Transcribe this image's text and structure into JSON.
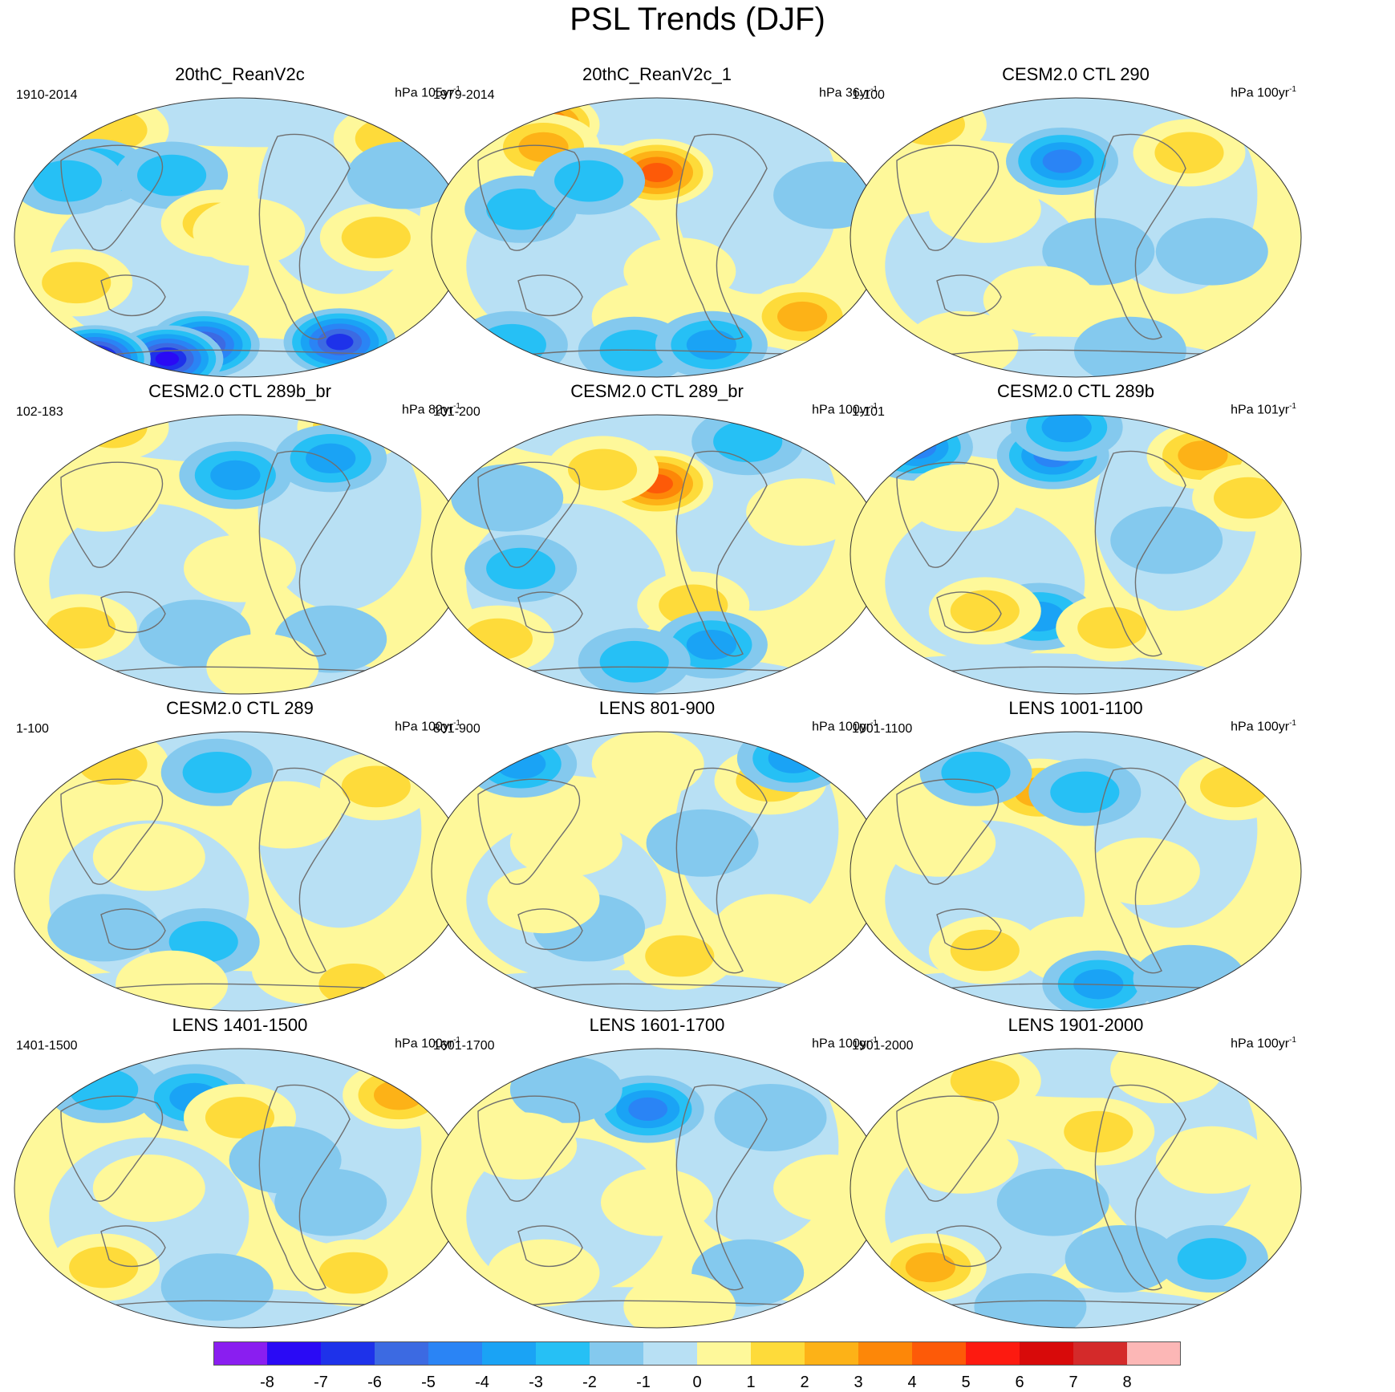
{
  "title": "PSL Trends (DJF)",
  "palette": [
    "#8a1ef0",
    "#2a0af5",
    "#1e32ea",
    "#3c6ae2",
    "#2a84f5",
    "#1aa3f5",
    "#26c0f5",
    "#84c9ee",
    "#b8e0f4",
    "#fef89a",
    "#fedb3a",
    "#fdb217",
    "#fd8708",
    "#fd5a08",
    "#fd1a10",
    "#d80a0a",
    "#d42a2a",
    "#fcb7b6"
  ],
  "colorbar": {
    "labels": [
      "-8",
      "-7",
      "-6",
      "-5",
      "-4",
      "-3",
      "-2",
      "-1",
      "0",
      "1",
      "2",
      "3",
      "4",
      "5",
      "6",
      "7",
      "8"
    ]
  },
  "panels": [
    {
      "title": "20thC_ReanV2c",
      "period": "1910-2014",
      "units_base": "hPa 105yr",
      "units_sup": "-1",
      "blobs": [
        [
          0.22,
          0.12,
          2
        ],
        [
          0.18,
          0.27,
          -3
        ],
        [
          0.12,
          0.3,
          -2
        ],
        [
          0.35,
          0.28,
          -2
        ],
        [
          0.45,
          0.45,
          2
        ],
        [
          0.52,
          0.48,
          1
        ],
        [
          0.83,
          0.15,
          2
        ],
        [
          0.8,
          0.5,
          2
        ],
        [
          0.86,
          0.28,
          -1
        ],
        [
          0.14,
          0.66,
          2
        ],
        [
          0.42,
          0.88,
          -6
        ],
        [
          0.72,
          0.87,
          -6
        ],
        [
          0.34,
          0.93,
          -7
        ],
        [
          0.18,
          0.93,
          -8
        ]
      ]
    },
    {
      "title": "20thC_ReanV2c_1",
      "period": "1979-2014",
      "units_base": "hPa 36yr",
      "units_sup": "-1",
      "blobs": [
        [
          0.25,
          0.1,
          5
        ],
        [
          0.25,
          0.18,
          3
        ],
        [
          0.5,
          0.27,
          5
        ],
        [
          0.2,
          0.4,
          -2
        ],
        [
          0.35,
          0.3,
          -2
        ],
        [
          0.55,
          0.62,
          1
        ],
        [
          0.82,
          0.78,
          3
        ],
        [
          0.48,
          0.78,
          1
        ],
        [
          0.88,
          0.35,
          -1
        ],
        [
          0.45,
          0.9,
          -2
        ],
        [
          0.62,
          0.88,
          -3
        ],
        [
          0.18,
          0.88,
          -2
        ]
      ]
    },
    {
      "title": "CESM2.0 CTL 290",
      "period": "1-100",
      "units_base": "hPa 100yr",
      "units_sup": "-1",
      "blobs": [
        [
          0.18,
          0.1,
          2
        ],
        [
          0.47,
          0.23,
          -4
        ],
        [
          0.75,
          0.2,
          2
        ],
        [
          0.12,
          0.3,
          1
        ],
        [
          0.3,
          0.4,
          1
        ],
        [
          0.55,
          0.55,
          -1
        ],
        [
          0.42,
          0.72,
          1
        ],
        [
          0.8,
          0.55,
          -1
        ],
        [
          0.62,
          0.9,
          -1
        ],
        [
          0.25,
          0.88,
          1
        ]
      ]
    },
    {
      "title": "CESM2.0 CTL 289b_br",
      "period": "102-183",
      "units_base": "hPa 82yr",
      "units_sup": "-1",
      "blobs": [
        [
          0.22,
          0.05,
          2
        ],
        [
          0.75,
          0.05,
          3
        ],
        [
          0.7,
          0.16,
          -3
        ],
        [
          0.49,
          0.22,
          -3
        ],
        [
          0.2,
          0.3,
          1
        ],
        [
          0.5,
          0.55,
          1
        ],
        [
          0.15,
          0.76,
          2
        ],
        [
          0.4,
          0.78,
          -1
        ],
        [
          0.7,
          0.8,
          -1
        ],
        [
          0.55,
          0.9,
          1
        ]
      ]
    },
    {
      "title": "CESM2.0 CTL 289_br",
      "period": "101-200",
      "units_base": "hPa 100yr",
      "units_sup": "-1",
      "blobs": [
        [
          0.5,
          0.25,
          5
        ],
        [
          0.38,
          0.2,
          2
        ],
        [
          0.7,
          0.1,
          -2
        ],
        [
          0.17,
          0.3,
          -1
        ],
        [
          0.2,
          0.55,
          -2
        ],
        [
          0.58,
          0.68,
          2
        ],
        [
          0.62,
          0.82,
          -3
        ],
        [
          0.45,
          0.88,
          -2
        ],
        [
          0.15,
          0.8,
          2
        ],
        [
          0.82,
          0.35,
          1
        ]
      ]
    },
    {
      "title": "CESM2.0 CTL 289b",
      "period": "1-101",
      "units_base": "hPa 101yr",
      "units_sup": "-1",
      "blobs": [
        [
          0.15,
          0.12,
          -4
        ],
        [
          0.45,
          0.15,
          -4
        ],
        [
          0.48,
          0.05,
          -3
        ],
        [
          0.78,
          0.15,
          3
        ],
        [
          0.88,
          0.3,
          2
        ],
        [
          0.42,
          0.72,
          -3
        ],
        [
          0.58,
          0.76,
          2
        ],
        [
          0.3,
          0.7,
          2
        ],
        [
          0.25,
          0.3,
          1
        ],
        [
          0.7,
          0.45,
          -1
        ]
      ]
    },
    {
      "title": "CESM2.0 CTL 289",
      "period": "1-100",
      "units_base": "hPa 100yr",
      "units_sup": "-1",
      "blobs": [
        [
          0.22,
          0.12,
          2
        ],
        [
          0.45,
          0.15,
          -2
        ],
        [
          0.8,
          0.2,
          2
        ],
        [
          0.6,
          0.3,
          1
        ],
        [
          0.3,
          0.45,
          1
        ],
        [
          0.42,
          0.75,
          -2
        ],
        [
          0.2,
          0.7,
          -1
        ],
        [
          0.65,
          0.85,
          1
        ],
        [
          0.35,
          0.9,
          1
        ],
        [
          0.75,
          0.9,
          2
        ]
      ]
    },
    {
      "title": "LENS 801-900",
      "period": "801-900",
      "units_base": "hPa 100yr",
      "units_sup": "-1",
      "blobs": [
        [
          0.2,
          0.12,
          -3
        ],
        [
          0.48,
          0.12,
          1
        ],
        [
          0.75,
          0.18,
          2
        ],
        [
          0.8,
          0.1,
          -3
        ],
        [
          0.3,
          0.4,
          1
        ],
        [
          0.6,
          0.4,
          -1
        ],
        [
          0.55,
          0.8,
          2
        ],
        [
          0.35,
          0.7,
          -1
        ],
        [
          0.75,
          0.7,
          1
        ],
        [
          0.25,
          0.6,
          1
        ]
      ]
    },
    {
      "title": "LENS 1001-1100",
      "period": "1001-1100",
      "units_base": "hPa 100yr",
      "units_sup": "-1",
      "blobs": [
        [
          0.42,
          0.22,
          3
        ],
        [
          0.52,
          0.22,
          -2
        ],
        [
          0.28,
          0.15,
          -2
        ],
        [
          0.85,
          0.2,
          2
        ],
        [
          0.3,
          0.78,
          2
        ],
        [
          0.5,
          0.78,
          1
        ],
        [
          0.55,
          0.9,
          -3
        ],
        [
          0.75,
          0.88,
          -1
        ],
        [
          0.2,
          0.4,
          1
        ],
        [
          0.65,
          0.5,
          1
        ]
      ]
    },
    {
      "title": "LENS 1401-1500",
      "period": "1401-1500",
      "units_base": "hPa 100yr",
      "units_sup": "-1",
      "blobs": [
        [
          0.2,
          0.15,
          -2
        ],
        [
          0.4,
          0.18,
          -3
        ],
        [
          0.5,
          0.25,
          2
        ],
        [
          0.85,
          0.17,
          3
        ],
        [
          0.6,
          0.4,
          -1
        ],
        [
          0.3,
          0.5,
          1
        ],
        [
          0.2,
          0.78,
          2
        ],
        [
          0.75,
          0.8,
          2
        ],
        [
          0.45,
          0.85,
          -1
        ],
        [
          0.7,
          0.55,
          -1
        ]
      ]
    },
    {
      "title": "LENS 1601-1700",
      "period": "1601-1700",
      "units_base": "hPa 100yr",
      "units_sup": "-1",
      "blobs": [
        [
          0.48,
          0.22,
          -4
        ],
        [
          0.3,
          0.15,
          -1
        ],
        [
          0.75,
          0.25,
          -1
        ],
        [
          0.2,
          0.35,
          1
        ],
        [
          0.5,
          0.55,
          1
        ],
        [
          0.25,
          0.8,
          1
        ],
        [
          0.7,
          0.8,
          -1
        ],
        [
          0.88,
          0.5,
          1
        ],
        [
          0.55,
          0.92,
          1
        ]
      ]
    },
    {
      "title": "LENS 1901-2000",
      "period": "1901-2000",
      "units_base": "hPa 100yr",
      "units_sup": "-1",
      "blobs": [
        [
          0.18,
          0.78,
          3
        ],
        [
          0.3,
          0.12,
          2
        ],
        [
          0.55,
          0.3,
          2
        ],
        [
          0.7,
          0.08,
          1
        ],
        [
          0.45,
          0.55,
          -1
        ],
        [
          0.6,
          0.75,
          -1
        ],
        [
          0.8,
          0.75,
          -2
        ],
        [
          0.4,
          0.92,
          -1
        ],
        [
          0.25,
          0.4,
          1
        ],
        [
          0.8,
          0.4,
          1
        ]
      ]
    }
  ]
}
